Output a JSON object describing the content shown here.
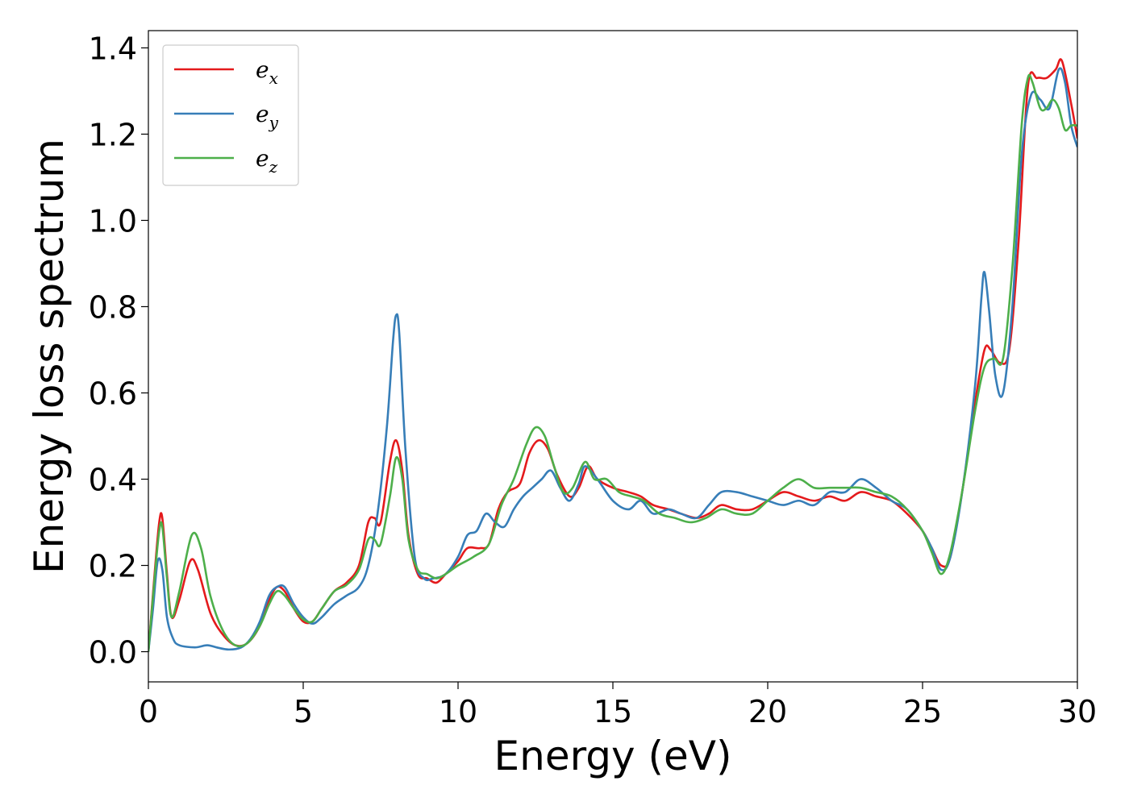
{
  "chart_data": {
    "type": "line",
    "xlabel": "Energy (eV)",
    "ylabel": "Energy loss spectrum",
    "xlim": [
      0,
      30
    ],
    "ylim": [
      -0.07,
      1.44
    ],
    "xticks": [
      0,
      5,
      10,
      15,
      20,
      25,
      30
    ],
    "yticks": [
      0.0,
      0.2,
      0.4,
      0.6,
      0.8,
      1.0,
      1.2,
      1.4
    ],
    "grid": false,
    "legend_position": "top-left",
    "series": [
      {
        "name": "e_x",
        "label_base": "e",
        "label_sub": "x",
        "color": "#e41a1c",
        "x": [
          0,
          0.2,
          0.35,
          0.45,
          0.6,
          0.75,
          1.0,
          1.35,
          1.6,
          2.0,
          2.4,
          2.8,
          3.2,
          3.6,
          3.9,
          4.15,
          4.4,
          4.7,
          5.0,
          5.3,
          5.6,
          6.0,
          6.4,
          6.8,
          7.1,
          7.3,
          7.5,
          7.8,
          8.0,
          8.2,
          8.4,
          8.7,
          9.0,
          9.3,
          9.6,
          10.0,
          10.3,
          10.7,
          11.0,
          11.3,
          11.6,
          12.0,
          12.3,
          12.6,
          12.9,
          13.2,
          13.6,
          13.9,
          14.2,
          14.5,
          15.0,
          15.5,
          15.9,
          16.3,
          16.8,
          17.2,
          17.7,
          18.1,
          18.5,
          19.0,
          19.5,
          20.0,
          20.5,
          21.0,
          21.5,
          22.0,
          22.5,
          23.0,
          23.5,
          24.0,
          24.5,
          25.0,
          25.3,
          25.6,
          25.9,
          26.3,
          26.7,
          27.0,
          27.2,
          27.5,
          27.8,
          28.1,
          28.4,
          28.7,
          29.0,
          29.3,
          29.5,
          29.8,
          30.0
        ],
        "y": [
          0.0,
          0.18,
          0.3,
          0.31,
          0.18,
          0.08,
          0.12,
          0.21,
          0.19,
          0.09,
          0.04,
          0.015,
          0.02,
          0.06,
          0.12,
          0.15,
          0.14,
          0.1,
          0.07,
          0.07,
          0.1,
          0.14,
          0.16,
          0.2,
          0.3,
          0.31,
          0.3,
          0.44,
          0.49,
          0.42,
          0.27,
          0.18,
          0.17,
          0.16,
          0.18,
          0.21,
          0.24,
          0.24,
          0.25,
          0.33,
          0.37,
          0.39,
          0.46,
          0.49,
          0.47,
          0.41,
          0.36,
          0.38,
          0.43,
          0.4,
          0.38,
          0.37,
          0.36,
          0.34,
          0.33,
          0.32,
          0.31,
          0.32,
          0.34,
          0.33,
          0.33,
          0.35,
          0.37,
          0.36,
          0.35,
          0.36,
          0.35,
          0.37,
          0.36,
          0.35,
          0.32,
          0.28,
          0.24,
          0.2,
          0.22,
          0.38,
          0.58,
          0.7,
          0.7,
          0.67,
          0.7,
          0.95,
          1.31,
          1.33,
          1.33,
          1.35,
          1.37,
          1.27,
          1.19
        ]
      },
      {
        "name": "e_y",
        "label_base": "e",
        "label_sub": "y",
        "color": "#377eb8",
        "x": [
          0,
          0.15,
          0.3,
          0.45,
          0.6,
          0.8,
          1.0,
          1.5,
          1.9,
          2.2,
          2.6,
          3.0,
          3.3,
          3.6,
          3.9,
          4.15,
          4.4,
          4.7,
          5.0,
          5.3,
          5.6,
          6.0,
          6.4,
          6.8,
          7.1,
          7.4,
          7.7,
          7.9,
          8.0,
          8.1,
          8.3,
          8.6,
          8.9,
          9.2,
          9.6,
          10.0,
          10.3,
          10.6,
          10.9,
          11.2,
          11.5,
          11.8,
          12.1,
          12.4,
          12.7,
          13.0,
          13.3,
          13.6,
          13.9,
          14.1,
          14.5,
          15.0,
          15.5,
          15.9,
          16.3,
          16.8,
          17.2,
          17.7,
          18.1,
          18.5,
          19.0,
          19.5,
          20.0,
          20.5,
          21.0,
          21.5,
          22.0,
          22.5,
          23.0,
          23.5,
          24.0,
          24.5,
          25.0,
          25.3,
          25.6,
          25.9,
          26.3,
          26.7,
          26.9,
          27.0,
          27.15,
          27.35,
          27.6,
          27.9,
          28.2,
          28.5,
          28.8,
          29.1,
          29.4,
          29.6,
          29.8,
          30.0
        ],
        "y": [
          0.0,
          0.1,
          0.21,
          0.19,
          0.08,
          0.03,
          0.015,
          0.01,
          0.015,
          0.01,
          0.005,
          0.01,
          0.03,
          0.07,
          0.13,
          0.15,
          0.15,
          0.11,
          0.08,
          0.065,
          0.08,
          0.11,
          0.13,
          0.15,
          0.2,
          0.32,
          0.52,
          0.72,
          0.78,
          0.74,
          0.47,
          0.22,
          0.17,
          0.17,
          0.18,
          0.22,
          0.27,
          0.28,
          0.32,
          0.3,
          0.29,
          0.33,
          0.36,
          0.38,
          0.4,
          0.42,
          0.38,
          0.35,
          0.39,
          0.43,
          0.4,
          0.35,
          0.33,
          0.35,
          0.32,
          0.33,
          0.32,
          0.31,
          0.34,
          0.37,
          0.37,
          0.36,
          0.35,
          0.34,
          0.35,
          0.34,
          0.37,
          0.37,
          0.4,
          0.38,
          0.35,
          0.33,
          0.28,
          0.24,
          0.19,
          0.22,
          0.38,
          0.62,
          0.82,
          0.88,
          0.79,
          0.64,
          0.6,
          0.8,
          1.15,
          1.29,
          1.28,
          1.26,
          1.35,
          1.32,
          1.22,
          1.17
        ]
      },
      {
        "name": "e_z",
        "label_base": "e",
        "label_sub": "z",
        "color": "#4daf4a",
        "x": [
          0,
          0.2,
          0.35,
          0.45,
          0.6,
          0.75,
          1.0,
          1.4,
          1.7,
          2.0,
          2.4,
          2.8,
          3.2,
          3.6,
          3.9,
          4.15,
          4.4,
          4.7,
          5.0,
          5.3,
          5.6,
          6.0,
          6.4,
          6.8,
          7.1,
          7.3,
          7.5,
          7.8,
          8.0,
          8.2,
          8.4,
          8.7,
          9.0,
          9.3,
          9.6,
          10.0,
          10.5,
          11.0,
          11.4,
          11.8,
          12.2,
          12.5,
          12.8,
          13.1,
          13.4,
          13.7,
          14.1,
          14.4,
          14.8,
          15.2,
          15.6,
          16.0,
          16.5,
          17.0,
          17.5,
          18.0,
          18.5,
          19.0,
          19.5,
          20.0,
          20.5,
          21.0,
          21.5,
          22.0,
          22.5,
          23.0,
          23.5,
          24.0,
          24.5,
          25.0,
          25.3,
          25.6,
          25.9,
          26.3,
          26.7,
          27.0,
          27.3,
          27.6,
          27.9,
          28.2,
          28.4,
          28.55,
          28.8,
          29.0,
          29.2,
          29.4,
          29.6,
          29.8,
          30.0
        ],
        "y": [
          0.0,
          0.17,
          0.28,
          0.29,
          0.17,
          0.08,
          0.14,
          0.27,
          0.24,
          0.13,
          0.05,
          0.015,
          0.02,
          0.06,
          0.11,
          0.14,
          0.13,
          0.1,
          0.075,
          0.07,
          0.1,
          0.14,
          0.155,
          0.19,
          0.26,
          0.26,
          0.25,
          0.36,
          0.45,
          0.4,
          0.26,
          0.19,
          0.18,
          0.17,
          0.18,
          0.2,
          0.22,
          0.25,
          0.34,
          0.4,
          0.48,
          0.52,
          0.5,
          0.43,
          0.37,
          0.38,
          0.44,
          0.4,
          0.4,
          0.37,
          0.36,
          0.35,
          0.32,
          0.31,
          0.3,
          0.31,
          0.33,
          0.32,
          0.32,
          0.35,
          0.38,
          0.4,
          0.38,
          0.38,
          0.38,
          0.38,
          0.37,
          0.36,
          0.33,
          0.28,
          0.23,
          0.18,
          0.23,
          0.38,
          0.56,
          0.66,
          0.68,
          0.68,
          0.89,
          1.22,
          1.33,
          1.32,
          1.26,
          1.26,
          1.28,
          1.26,
          1.21,
          1.22,
          1.22
        ]
      }
    ]
  }
}
